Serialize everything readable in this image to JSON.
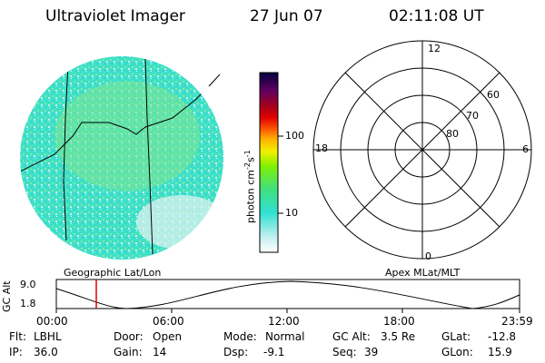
{
  "header": {
    "instrument": "Ultraviolet Imager",
    "date": "27 Jun 07",
    "time": "02:11:08 UT"
  },
  "colorbar": {
    "unit_label": "photon cm",
    "unit_sup1": "-2",
    "unit_s": "s",
    "unit_sup2": "-1",
    "ticks": [
      "100",
      "10"
    ]
  },
  "polar_plot": {
    "mlt_labels": {
      "top": "12",
      "right": "6",
      "bottom": "0",
      "left": "18"
    },
    "lat_labels": [
      "60",
      "70",
      "80"
    ],
    "caption": "Apex MLat/MLT"
  },
  "image_caption": "Geographic Lat/Lon",
  "altitude_plot": {
    "ylabel": "GC Alt",
    "y_ticks": [
      "9.0",
      "1.8"
    ],
    "x_ticks": [
      "00:00",
      "06:00",
      "12:00",
      "18:00",
      "23:59"
    ]
  },
  "info": {
    "row1": {
      "flt_label": "Flt:",
      "flt_value": "LBHL",
      "door_label": "Door:",
      "door_value": "Open",
      "mode_label": "Mode:",
      "mode_value": "Normal",
      "gcalt_label": "GC Alt:",
      "gcalt_value": "3.5 Re",
      "glat_label": "GLat:",
      "glat_value": "-12.8"
    },
    "row2": {
      "ip_label": "IP:",
      "ip_value": "36.0",
      "gain_label": "Gain:",
      "gain_value": "14",
      "dsp_label": "Dsp:",
      "dsp_value": "-9.1",
      "seq_label": "Seq:",
      "seq_value": "39",
      "glon_label": "GLon:",
      "glon_value": "15.9"
    }
  },
  "colors": {
    "image_fill": "#38e8c8",
    "image_patch": "#8ee878",
    "marker": "#e00000"
  }
}
